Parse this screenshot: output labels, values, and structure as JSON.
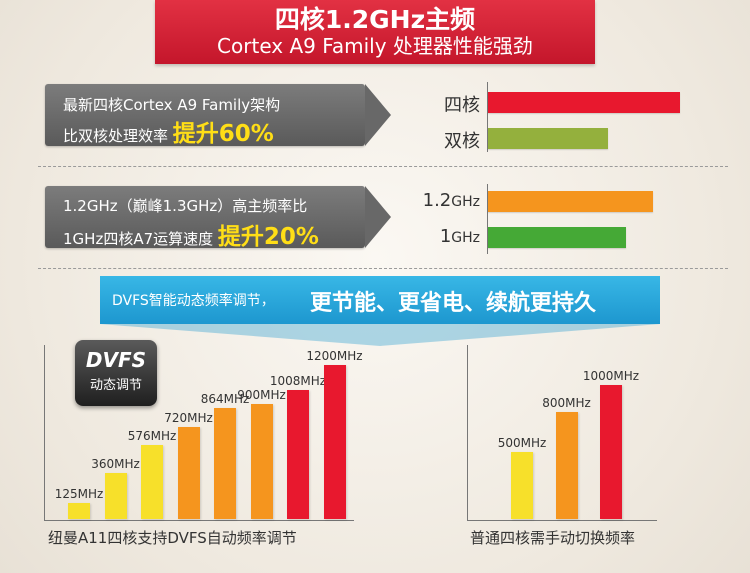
{
  "header": {
    "title": "四核1.2GHz主频",
    "subtitle": "Cortex A9 Family 处理器性能强劲"
  },
  "callout1": {
    "line1": "最新四核Cortex A9 Family架构",
    "line2_prefix": "比双核处理效率",
    "line2_highlight": "提升60%"
  },
  "callout2": {
    "line1": "1.2GHz（巅峰1.3GHz）高主频率比",
    "line2_prefix": "1GHz四核A7运算速度",
    "line2_highlight": "提升20%"
  },
  "ribbon": {
    "small": "DVFS智能动态频率调节，",
    "large": "更节能、更省电、续航更持久"
  },
  "chip": {
    "line1": "DVFS",
    "line2": "动态调节"
  },
  "colors": {
    "red": "#e8182e",
    "olive": "#94b03d",
    "orange": "#f5951e",
    "green": "#45a936",
    "yellow": "#f7e02a"
  },
  "chart_data": [
    {
      "type": "bar",
      "orientation": "horizontal",
      "categories": [
        "四核",
        "双核"
      ],
      "values": [
        160,
        100
      ],
      "colors": [
        "#e8182e",
        "#94b03d"
      ]
    },
    {
      "type": "bar",
      "orientation": "horizontal",
      "categories": [
        "1.2GHz",
        "1GHz"
      ],
      "values": [
        120,
        100
      ],
      "colors": [
        "#f5951e",
        "#45a936"
      ]
    },
    {
      "type": "bar",
      "title": "纽曼A11四核支持DVFS自动频率调节",
      "categories": [
        "125MHz",
        "360MHz",
        "576MHz",
        "720MHz",
        "864MHz",
        "900MHz",
        "1008MHz",
        "1200MHz"
      ],
      "values": [
        125,
        360,
        576,
        720,
        864,
        900,
        1008,
        1200
      ],
      "unit": "MHz",
      "colors": [
        "#f7e02a",
        "#f7e02a",
        "#f7e02a",
        "#f5951e",
        "#f5951e",
        "#f5951e",
        "#e8182e",
        "#e8182e"
      ]
    },
    {
      "type": "bar",
      "title": "普通四核需手动切换频率",
      "categories": [
        "500MHz",
        "800MHz",
        "1000MHz"
      ],
      "values": [
        500,
        800,
        1000
      ],
      "unit": "MHz",
      "colors": [
        "#f7e02a",
        "#f5951e",
        "#e8182e"
      ]
    }
  ]
}
